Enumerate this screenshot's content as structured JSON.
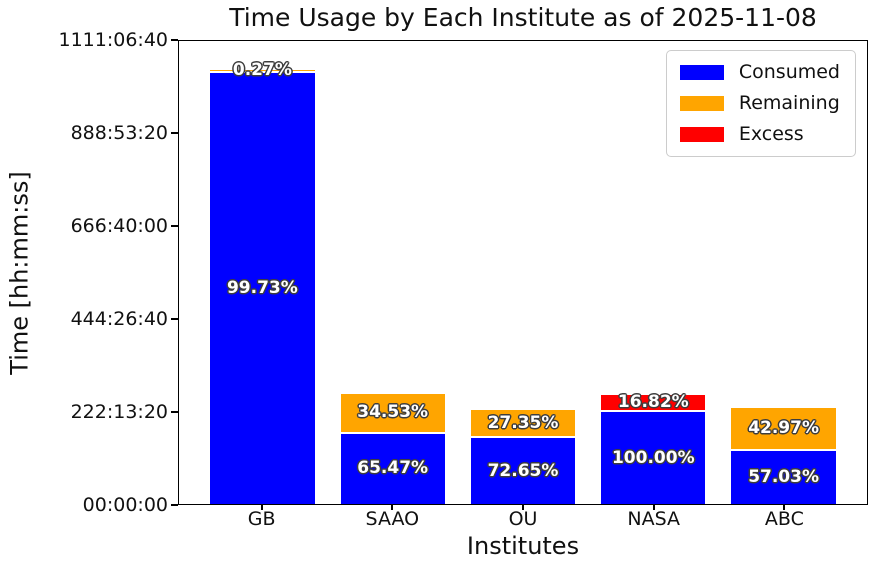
{
  "title": "Time Usage by Each Institute as of 2025-11-08",
  "x_axis_label": "Institutes",
  "y_axis_label": "Time [hh:mm:ss]",
  "legend": {
    "position": "upper right",
    "items": [
      {
        "label": "Consumed",
        "color": "#0000ff"
      },
      {
        "label": "Remaining",
        "color": "#ffa500"
      },
      {
        "label": "Excess",
        "color": "#ff0000"
      }
    ]
  },
  "chart_data": {
    "type": "bar",
    "stacked": true,
    "title": "Time Usage by Each Institute as of 2025-11-08",
    "xlabel": "Institutes",
    "ylabel": "Time [hh:mm:ss]",
    "grid": false,
    "legend_position": "upper right",
    "ylim_seconds": [
      0,
      4000000
    ],
    "y_ticks": [
      {
        "seconds": 0,
        "label": "00:00:00"
      },
      {
        "seconds": 800000,
        "label": "222:13:20"
      },
      {
        "seconds": 1600000,
        "label": "444:26:40"
      },
      {
        "seconds": 2400000,
        "label": "666:40:00"
      },
      {
        "seconds": 3200000,
        "label": "888:53:20"
      },
      {
        "seconds": 4000000,
        "label": "1111:06:40"
      }
    ],
    "categories": [
      "GB",
      "SAAO",
      "OU",
      "NASA",
      "ABC"
    ],
    "bars": [
      {
        "category": "GB",
        "allocation_seconds_est": 3760000,
        "allocation_hhmmss_est": "1044:26:40",
        "segments": [
          {
            "series": "Consumed",
            "percent": 99.73,
            "label": "99.73%"
          },
          {
            "series": "Remaining",
            "percent": 0.27,
            "label": "0.27%"
          }
        ]
      },
      {
        "category": "SAAO",
        "allocation_seconds_est": 954000,
        "allocation_hhmmss_est": "265:00:00",
        "segments": [
          {
            "series": "Consumed",
            "percent": 65.47,
            "label": "65.47%"
          },
          {
            "series": "Remaining",
            "percent": 34.53,
            "label": "34.53%"
          }
        ]
      },
      {
        "category": "OU",
        "allocation_seconds_est": 810000,
        "allocation_hhmmss_est": "225:00:00",
        "segments": [
          {
            "series": "Consumed",
            "percent": 72.65,
            "label": "72.65%"
          },
          {
            "series": "Remaining",
            "percent": 27.35,
            "label": "27.35%"
          }
        ]
      },
      {
        "category": "NASA",
        "allocation_seconds_est": 810000,
        "allocation_hhmmss_est": "225:00:00",
        "segments": [
          {
            "series": "Consumed",
            "percent": 100.0,
            "label": "100.00%"
          },
          {
            "series": "Excess",
            "percent": 16.82,
            "label": "16.82%"
          }
        ]
      },
      {
        "category": "ABC",
        "allocation_seconds_est": 828000,
        "allocation_hhmmss_est": "230:00:00",
        "segments": [
          {
            "series": "Consumed",
            "percent": 57.03,
            "label": "57.03%"
          },
          {
            "series": "Remaining",
            "percent": 42.97,
            "label": "42.97%"
          }
        ]
      }
    ],
    "bar_label_style": {
      "color": "#ffffff",
      "outline": "#3d3d3d"
    },
    "axis_color": "#000000",
    "background_color": "#ffffff"
  }
}
